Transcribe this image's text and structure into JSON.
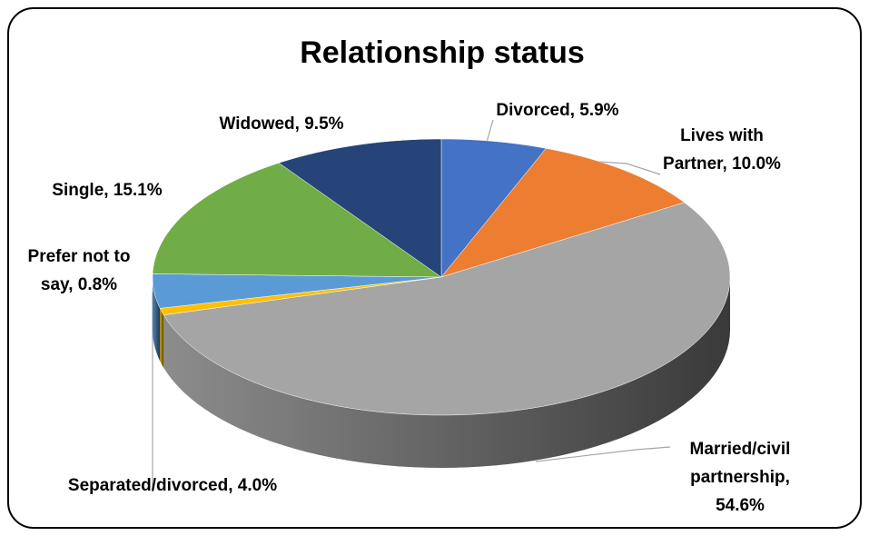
{
  "chart_data": {
    "type": "pie3d",
    "title": "Relationship status",
    "values": [
      5.9,
      10.0,
      54.6,
      0.8,
      4.0,
      15.1,
      9.5
    ],
    "value_labels": [
      [
        "Divorced, 5.9%"
      ],
      [
        "Lives with",
        "Partner, 10.0%"
      ],
      [
        "Married/civil",
        "partnership,",
        "54.6%"
      ],
      [
        "Prefer not to",
        "say, 0.8%"
      ],
      [
        "Separated/divorced, 4.0%"
      ],
      [
        "Single, 15.1%"
      ],
      [
        "Widowed, 9.5%"
      ]
    ],
    "colors": [
      "#4472c4",
      "#ed7d31",
      "#a5a5a5",
      "#ffc000",
      "#5b9bd5",
      "#70ad47",
      "#264478"
    ]
  }
}
